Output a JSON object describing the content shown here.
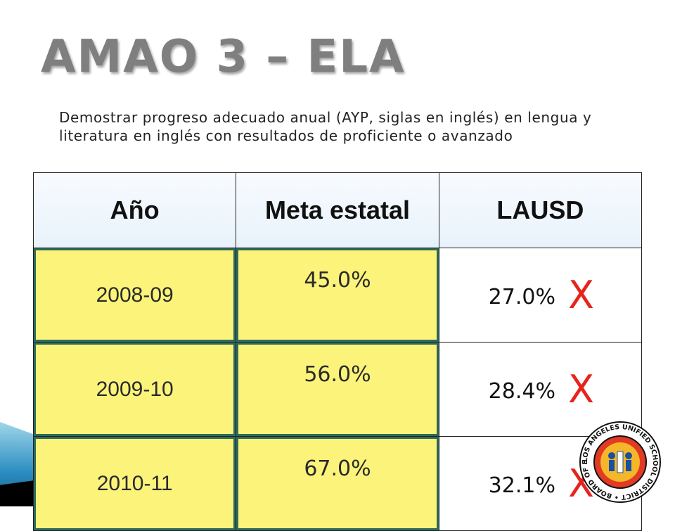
{
  "slide": {
    "title": "AMAO 3 – ELA",
    "subtitle": "Demostrar progreso adecuado anual (AYP, siglas en inglés) en lengua y literatura en inglés con resultados de proficiente o avanzado"
  },
  "table": {
    "headers": [
      "Año",
      "Meta estatal",
      "LAUSD"
    ],
    "rows": [
      {
        "year": "2008-09",
        "state_goal": "45.0%",
        "lausd": "27.0%",
        "mark": "X"
      },
      {
        "year": "2009-10",
        "state_goal": "56.0%",
        "lausd": "28.4%",
        "mark": "X"
      },
      {
        "year": "2010-11",
        "state_goal": "67.0%",
        "lausd": "32.1%",
        "mark": "X"
      }
    ]
  },
  "seal": {
    "text": "LOS ANGELES UNIFIED SCHOOL DISTRICT • BOARD OF EDUCATION"
  },
  "colors": {
    "title": "#7f7f7f",
    "highlight": "#fcf37b",
    "mark": "#e8231c",
    "header_bg": "#eef5fc"
  }
}
